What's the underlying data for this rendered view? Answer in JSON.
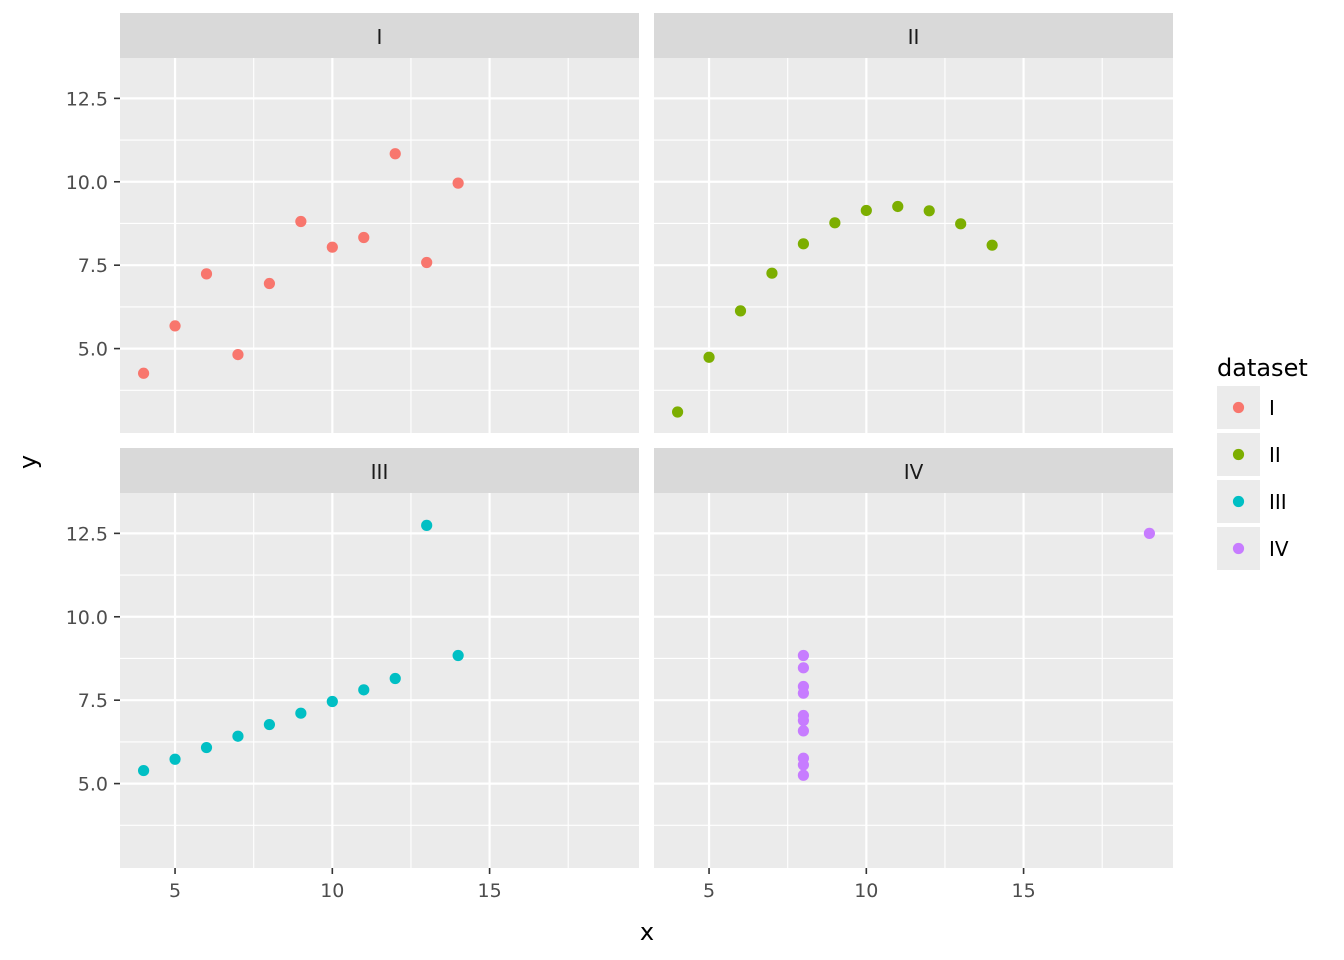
{
  "chart_data": {
    "type": "scatter",
    "facet_by": "dataset",
    "xlabel": "x",
    "ylabel": "y",
    "xlim": [
      3.25,
      19.75
    ],
    "ylim": [
      2.47,
      13.71
    ],
    "x_ticks": [
      5,
      10,
      15
    ],
    "x_tick_labels": [
      "5",
      "10",
      "15"
    ],
    "y_ticks": [
      5.0,
      7.5,
      10.0,
      12.5
    ],
    "y_tick_labels": [
      "5.0",
      "7.5",
      "10.0",
      "12.5"
    ],
    "grid": true,
    "legend": {
      "title": "dataset",
      "position": "right",
      "entries": [
        "I",
        "II",
        "III",
        "IV"
      ]
    },
    "series": [
      {
        "name": "I",
        "color": "#F8766D",
        "x": [
          10,
          8,
          13,
          9,
          11,
          14,
          6,
          4,
          12,
          7,
          5
        ],
        "y": [
          8.04,
          6.95,
          7.58,
          8.81,
          8.33,
          9.96,
          7.24,
          4.26,
          10.84,
          4.82,
          5.68
        ]
      },
      {
        "name": "II",
        "color": "#7CAE00",
        "x": [
          10,
          8,
          13,
          9,
          11,
          14,
          6,
          4,
          12,
          7,
          5
        ],
        "y": [
          9.14,
          8.14,
          8.74,
          8.77,
          9.26,
          8.1,
          6.13,
          3.1,
          9.13,
          7.26,
          4.74
        ]
      },
      {
        "name": "III",
        "color": "#00BFC4",
        "x": [
          10,
          8,
          13,
          9,
          11,
          14,
          6,
          4,
          12,
          7,
          5
        ],
        "y": [
          7.46,
          6.77,
          12.74,
          7.11,
          7.81,
          8.84,
          6.08,
          5.39,
          8.15,
          6.42,
          5.73
        ]
      },
      {
        "name": "IV",
        "color": "#C77CFF",
        "x": [
          8,
          8,
          8,
          8,
          8,
          8,
          8,
          19,
          8,
          8,
          8
        ],
        "y": [
          6.58,
          5.76,
          7.71,
          8.84,
          8.47,
          7.04,
          5.25,
          12.5,
          5.56,
          7.91,
          6.89
        ]
      }
    ]
  }
}
